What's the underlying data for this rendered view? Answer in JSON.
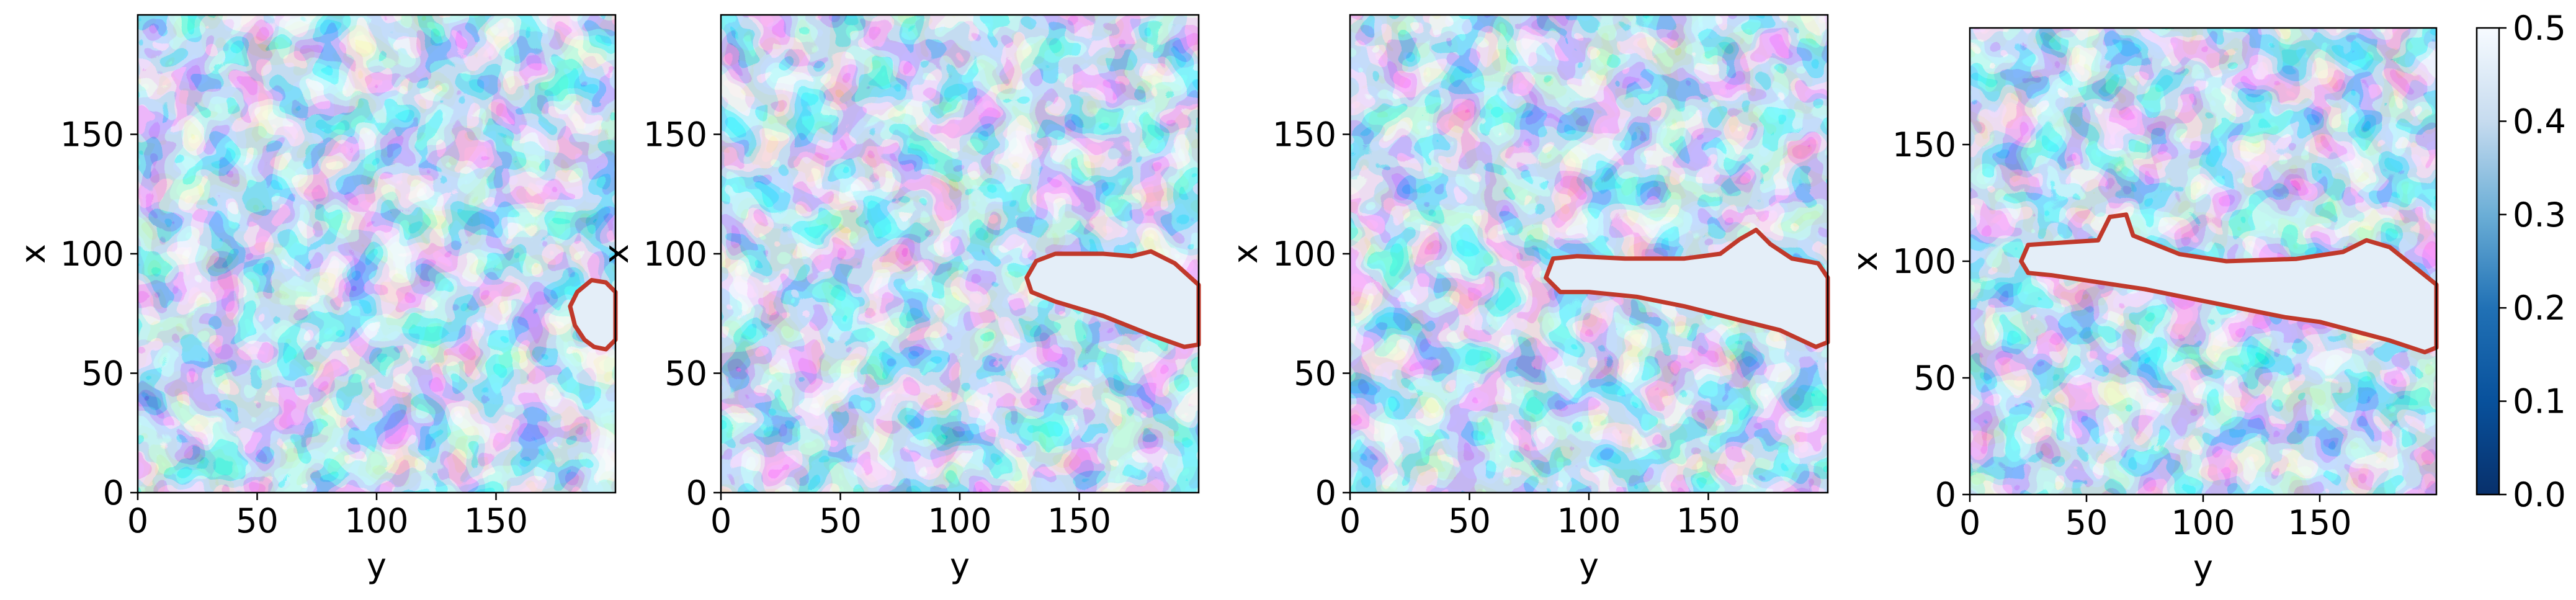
{
  "chart_data": {
    "type": "heatmap",
    "colormap": "Blues_r",
    "colorbar": {
      "range": [
        0.0,
        0.5
      ],
      "ticks": [
        0.0,
        0.1,
        0.2,
        0.3,
        0.4,
        0.5
      ],
      "tick_labels": [
        "0.0",
        "0.1",
        "0.2",
        "0.3",
        "0.4",
        "0.5"
      ]
    },
    "contour_color": "#c0392b",
    "panels": [
      {
        "xlabel": "y",
        "ylabel": "x",
        "xlim": [
          0,
          200
        ],
        "ylim": [
          0,
          200
        ],
        "xticks": [
          0,
          50,
          100,
          150
        ],
        "xtick_labels": [
          "0",
          "50",
          "100",
          "150"
        ],
        "yticks": [
          0,
          50,
          100,
          150
        ],
        "ytick_labels": [
          "0",
          "50",
          "100",
          "150"
        ],
        "region_outline": [
          [
            187,
            64
          ],
          [
            183,
            70
          ],
          [
            181,
            78
          ],
          [
            184,
            84
          ],
          [
            190,
            89
          ],
          [
            196,
            88
          ],
          [
            200,
            84
          ],
          [
            200,
            64
          ],
          [
            196,
            60
          ],
          [
            191,
            61
          ]
        ]
      },
      {
        "xlabel": "y",
        "ylabel": "x",
        "xlim": [
          0,
          200
        ],
        "ylim": [
          0,
          200
        ],
        "xticks": [
          0,
          50,
          100,
          150
        ],
        "xtick_labels": [
          "0",
          "50",
          "100",
          "150"
        ],
        "yticks": [
          0,
          50,
          100,
          150
        ],
        "ytick_labels": [
          "0",
          "50",
          "100",
          "150"
        ],
        "region_outline": [
          [
            128,
            90
          ],
          [
            132,
            97
          ],
          [
            140,
            100
          ],
          [
            160,
            100
          ],
          [
            172,
            99
          ],
          [
            180,
            101
          ],
          [
            190,
            96
          ],
          [
            200,
            87
          ],
          [
            200,
            62
          ],
          [
            194,
            61
          ],
          [
            180,
            66
          ],
          [
            160,
            74
          ],
          [
            140,
            80
          ],
          [
            130,
            84
          ]
        ]
      },
      {
        "xlabel": "y",
        "ylabel": "x",
        "xlim": [
          0,
          200
        ],
        "ylim": [
          0,
          200
        ],
        "xticks": [
          0,
          50,
          100,
          150
        ],
        "xtick_labels": [
          "0",
          "50",
          "100",
          "150"
        ],
        "yticks": [
          0,
          50,
          100,
          150
        ],
        "ytick_labels": [
          "0",
          "50",
          "100",
          "150"
        ],
        "region_outline": [
          [
            82,
            90
          ],
          [
            85,
            98
          ],
          [
            95,
            99
          ],
          [
            115,
            98
          ],
          [
            140,
            98
          ],
          [
            155,
            100
          ],
          [
            163,
            106
          ],
          [
            170,
            110
          ],
          [
            176,
            104
          ],
          [
            185,
            98
          ],
          [
            196,
            96
          ],
          [
            200,
            90
          ],
          [
            200,
            63
          ],
          [
            195,
            61
          ],
          [
            180,
            68
          ],
          [
            160,
            73
          ],
          [
            140,
            78
          ],
          [
            120,
            82
          ],
          [
            100,
            84
          ],
          [
            88,
            84
          ]
        ]
      },
      {
        "xlabel": "y",
        "ylabel": "x",
        "xlim": [
          0,
          200
        ],
        "ylim": [
          0,
          200
        ],
        "xticks": [
          0,
          50,
          100,
          150
        ],
        "xtick_labels": [
          "0",
          "50",
          "100",
          "150"
        ],
        "yticks": [
          0,
          50,
          100,
          150
        ],
        "ytick_labels": [
          "0",
          "50",
          "100",
          "150"
        ],
        "region_outline": [
          [
            22,
            100
          ],
          [
            25,
            107
          ],
          [
            40,
            108
          ],
          [
            55,
            109
          ],
          [
            60,
            119
          ],
          [
            67,
            120
          ],
          [
            70,
            111
          ],
          [
            90,
            103
          ],
          [
            110,
            100
          ],
          [
            140,
            101
          ],
          [
            160,
            104
          ],
          [
            170,
            109
          ],
          [
            180,
            106
          ],
          [
            190,
            98
          ],
          [
            200,
            90
          ],
          [
            200,
            63
          ],
          [
            195,
            61
          ],
          [
            180,
            66
          ],
          [
            165,
            70
          ],
          [
            150,
            74
          ],
          [
            135,
            76
          ],
          [
            115,
            80
          ],
          [
            95,
            84
          ],
          [
            75,
            88
          ],
          [
            55,
            91
          ],
          [
            35,
            94
          ],
          [
            25,
            95
          ]
        ]
      }
    ]
  }
}
